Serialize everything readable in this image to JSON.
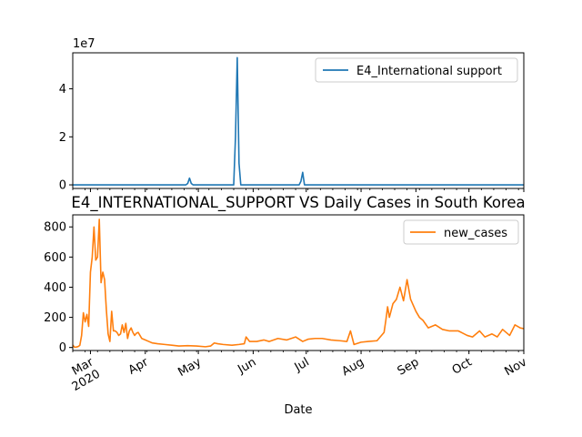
{
  "chart_data": [
    {
      "type": "line",
      "title": "",
      "xlabel": "",
      "ylabel": "",
      "scale_label": "1e7",
      "ylim": [
        -1500000,
        55000000
      ],
      "yticks": [
        0,
        2,
        4
      ],
      "color": "#1f77b4",
      "legend_position": "upper right",
      "series": [
        {
          "name": "E4_International support",
          "x": [
            "2020-02-20",
            "2020-04-24",
            "2020-04-25",
            "2020-04-26",
            "2020-04-27",
            "2020-04-28",
            "2020-05-21",
            "2020-05-22",
            "2020-05-23",
            "2020-05-24",
            "2020-05-25",
            "2020-06-27",
            "2020-06-28",
            "2020-06-29",
            "2020-06-30",
            "2020-11-01"
          ],
          "values": [
            0,
            0,
            600000,
            2800000,
            600000,
            0,
            0,
            20000000,
            53000000,
            9000000,
            0,
            0,
            1500000,
            5200000,
            0,
            0
          ]
        }
      ]
    },
    {
      "type": "line",
      "title": "E4_INTERNATIONAL_SUPPORT VS Daily Cases in South Korea",
      "xlabel": "Date",
      "ylabel": "",
      "ylim": [
        -20,
        880
      ],
      "yticks": [
        0,
        200,
        400,
        600,
        800
      ],
      "xlim": [
        "2020-02-20",
        "2020-11-01"
      ],
      "xtick_labels": [
        "Mar\n2020",
        "Apr",
        "May",
        "Jun",
        "Jul",
        "Aug",
        "Sep",
        "Oct",
        "Nov"
      ],
      "color": "#ff7f0e",
      "legend_position": "upper right",
      "series": [
        {
          "name": "new_cases",
          "x": [
            "2020-02-20",
            "2020-02-21",
            "2020-02-22",
            "2020-02-23",
            "2020-02-24",
            "2020-02-25",
            "2020-02-26",
            "2020-02-27",
            "2020-02-28",
            "2020-02-29",
            "2020-03-01",
            "2020-03-02",
            "2020-03-03",
            "2020-03-04",
            "2020-03-05",
            "2020-03-06",
            "2020-03-07",
            "2020-03-08",
            "2020-03-09",
            "2020-03-10",
            "2020-03-11",
            "2020-03-12",
            "2020-03-13",
            "2020-03-14",
            "2020-03-15",
            "2020-03-16",
            "2020-03-17",
            "2020-03-18",
            "2020-03-19",
            "2020-03-20",
            "2020-03-21",
            "2020-03-22",
            "2020-03-23",
            "2020-03-24",
            "2020-03-25",
            "2020-03-26",
            "2020-03-27",
            "2020-03-28",
            "2020-03-29",
            "2020-03-30",
            "2020-04-01",
            "2020-04-03",
            "2020-04-05",
            "2020-04-08",
            "2020-04-12",
            "2020-04-16",
            "2020-04-20",
            "2020-04-25",
            "2020-04-30",
            "2020-05-05",
            "2020-05-08",
            "2020-05-10",
            "2020-05-12",
            "2020-05-15",
            "2020-05-20",
            "2020-05-24",
            "2020-05-27",
            "2020-05-28",
            "2020-05-30",
            "2020-06-03",
            "2020-06-07",
            "2020-06-10",
            "2020-06-15",
            "2020-06-20",
            "2020-06-25",
            "2020-06-29",
            "2020-07-02",
            "2020-07-06",
            "2020-07-10",
            "2020-07-15",
            "2020-07-20",
            "2020-07-24",
            "2020-07-26",
            "2020-07-28",
            "2020-08-01",
            "2020-08-05",
            "2020-08-10",
            "2020-08-14",
            "2020-08-15",
            "2020-08-16",
            "2020-08-17",
            "2020-08-19",
            "2020-08-21",
            "2020-08-23",
            "2020-08-25",
            "2020-08-27",
            "2020-08-29",
            "2020-09-01",
            "2020-09-03",
            "2020-09-05",
            "2020-09-08",
            "2020-09-12",
            "2020-09-16",
            "2020-09-20",
            "2020-09-25",
            "2020-09-30",
            "2020-10-03",
            "2020-10-07",
            "2020-10-10",
            "2020-10-14",
            "2020-10-17",
            "2020-10-20",
            "2020-10-24",
            "2020-10-27",
            "2020-10-30",
            "2020-11-01"
          ],
          "values": [
            16,
            2,
            3,
            6,
            14,
            80,
            230,
            170,
            220,
            140,
            500,
            600,
            800,
            580,
            600,
            850,
            430,
            500,
            450,
            250,
            90,
            40,
            240,
            110,
            110,
            100,
            80,
            90,
            150,
            100,
            160,
            60,
            110,
            130,
            100,
            80,
            95,
            100,
            80,
            60,
            50,
            40,
            30,
            25,
            20,
            15,
            10,
            12,
            10,
            5,
            10,
            30,
            25,
            20,
            15,
            20,
            25,
            70,
            40,
            40,
            50,
            40,
            60,
            50,
            70,
            40,
            55,
            60,
            60,
            50,
            45,
            40,
            110,
            20,
            35,
            40,
            45,
            100,
            180,
            270,
            200,
            290,
            320,
            400,
            310,
            450,
            320,
            240,
            200,
            180,
            130,
            150,
            120,
            110,
            110,
            80,
            70,
            110,
            70,
            90,
            70,
            120,
            80,
            150,
            130,
            125
          ]
        }
      ]
    }
  ]
}
